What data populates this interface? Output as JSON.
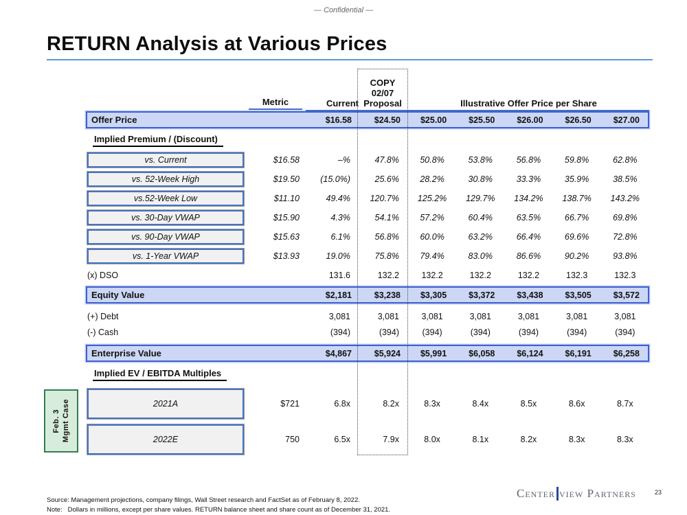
{
  "confidential": "— Confidential —",
  "title": "RETURN Analysis at Various Prices",
  "colors": {
    "accent_blue_border": "#3d5fd3",
    "highlight_row_fill": "#ccd7f5",
    "header_underline_blue": "#4472C4",
    "title_underline_blue": "#5B9BD5",
    "label_box_fill": "#f1f1f1",
    "case_box_fill": "#d8ecdc",
    "case_box_border": "#2f7d4e",
    "logo_gray": "#5e6470",
    "logo_bar_blue": "#2b4a9b"
  },
  "table": {
    "metric_header": "Metric",
    "current_header": "Current",
    "proposal_header_lines": [
      "COPY",
      "02/07",
      "Proposal"
    ],
    "illustrative_header": "Illustrative Offer Price per Share",
    "offer_price": {
      "label": "Offer Price",
      "cells": [
        "",
        "$16.58",
        "$24.50",
        "$25.00",
        "$25.50",
        "$26.00",
        "$26.50",
        "$27.00"
      ]
    },
    "premium_section_title": "Implied Premium / (Discount)",
    "premium_rows": [
      {
        "label": "vs. Current",
        "cells": [
          "$16.58",
          "–%",
          "47.8%",
          "50.8%",
          "53.8%",
          "56.8%",
          "59.8%",
          "62.8%"
        ]
      },
      {
        "label": "vs. 52-Week High",
        "cells": [
          "$19.50",
          "(15.0%)",
          "25.6%",
          "28.2%",
          "30.8%",
          "33.3%",
          "35.9%",
          "38.5%"
        ]
      },
      {
        "label": "vs.52-Week Low",
        "cells": [
          "$11.10",
          "49.4%",
          "120.7%",
          "125.2%",
          "129.7%",
          "134.2%",
          "138.7%",
          "143.2%"
        ]
      },
      {
        "label": "vs. 30-Day VWAP",
        "cells": [
          "$15.90",
          "4.3%",
          "54.1%",
          "57.2%",
          "60.4%",
          "63.5%",
          "66.7%",
          "69.8%"
        ]
      },
      {
        "label": "vs. 90-Day VWAP",
        "cells": [
          "$15.63",
          "6.1%",
          "56.8%",
          "60.0%",
          "63.2%",
          "66.4%",
          "69.6%",
          "72.8%"
        ]
      },
      {
        "label": "vs. 1-Year VWAP",
        "cells": [
          "$13.93",
          "19.0%",
          "75.8%",
          "79.4%",
          "83.0%",
          "86.6%",
          "90.2%",
          "93.8%"
        ]
      }
    ],
    "dso_row": {
      "label": "(x) DSO",
      "cells": [
        "",
        "131.6",
        "132.2",
        "132.2",
        "132.2",
        "132.2",
        "132.3",
        "132.3"
      ]
    },
    "equity_row": {
      "label": "Equity Value",
      "cells": [
        "",
        "$2,181",
        "$3,238",
        "$3,305",
        "$3,372",
        "$3,438",
        "$3,505",
        "$3,572"
      ]
    },
    "debt_row": {
      "label": "(+) Debt",
      "cells": [
        "",
        "3,081",
        "3,081",
        "3,081",
        "3,081",
        "3,081",
        "3,081",
        "3,081"
      ]
    },
    "cash_row": {
      "label": "(-) Cash",
      "cells": [
        "",
        "(394)",
        "(394)",
        "(394)",
        "(394)",
        "(394)",
        "(394)",
        "(394)"
      ]
    },
    "enterprise_row": {
      "label": "Enterprise Value",
      "cells": [
        "",
        "$4,867",
        "$5,924",
        "$5,991",
        "$6,058",
        "$6,124",
        "$6,191",
        "$6,258"
      ]
    },
    "multiples_section_title": "Implied EV / EBITDA Multiples",
    "multiples_rows": [
      {
        "label": "2021A",
        "cells": [
          "$721",
          "6.8x",
          "8.2x",
          "8.3x",
          "8.4x",
          "8.5x",
          "8.6x",
          "8.7x"
        ]
      },
      {
        "label": "2022E",
        "cells": [
          "750",
          "6.5x",
          "7.9x",
          "8.0x",
          "8.1x",
          "8.2x",
          "8.3x",
          "8.3x"
        ]
      }
    ]
  },
  "case_label": {
    "line1": "Feb. 3",
    "line2": "Mgmt Case"
  },
  "footer": {
    "source": "Source: Management projections, company filings, Wall Street research and FactSet as of February 8, 2022.",
    "note": "Note:   Dollars in millions, except per share values. RETURN balance sheet and share count as of December 31, 2021.",
    "logo_left": "Center",
    "logo_right": "view Partners",
    "page_number": "23"
  }
}
